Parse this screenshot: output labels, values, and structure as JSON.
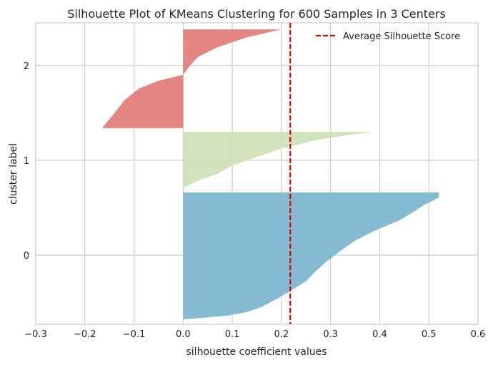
{
  "chart_data": {
    "type": "silhouette",
    "title": "Silhouette Plot of KMeans Clustering for 600 Samples in 3 Centers",
    "xlabel": "silhouette coefficient values",
    "ylabel": "cluster label",
    "xlim": [
      -0.3,
      0.6
    ],
    "ylim": [
      -0.73,
      2.45
    ],
    "xticks": [
      "−0.3",
      "−0.2",
      "−0.1",
      "0.0",
      "0.1",
      "0.2",
      "0.3",
      "0.4",
      "0.5",
      "0.6"
    ],
    "xtick_values": [
      -0.3,
      -0.2,
      -0.1,
      0.0,
      0.1,
      0.2,
      0.3,
      0.4,
      0.5,
      0.6
    ],
    "ytick_labels": [
      "0",
      "1",
      "2"
    ],
    "ytick_values": [
      0,
      1,
      2
    ],
    "grid": true,
    "legend_position": "top-right",
    "average_score": 0.218,
    "average_label": "Average Silhouette Score",
    "average_color": "#e00000",
    "clusters": [
      {
        "label": "0",
        "color": "#7eb6d0",
        "y_range": [
          -0.68,
          0.66
        ],
        "profile": [
          [
            0.0,
            0.521
          ],
          [
            0.04,
            0.52
          ],
          [
            0.06,
            0.51
          ],
          [
            0.1,
            0.49
          ],
          [
            0.15,
            0.47
          ],
          [
            0.22,
            0.44
          ],
          [
            0.3,
            0.39
          ],
          [
            0.38,
            0.35
          ],
          [
            0.46,
            0.32
          ],
          [
            0.55,
            0.29
          ],
          [
            0.62,
            0.27
          ],
          [
            0.7,
            0.25
          ],
          [
            0.77,
            0.22
          ],
          [
            0.84,
            0.19
          ],
          [
            0.9,
            0.16
          ],
          [
            0.94,
            0.13
          ],
          [
            0.97,
            0.09
          ],
          [
            1.0,
            0.0
          ]
        ]
      },
      {
        "label": "1",
        "color": "#cfe0b8",
        "y_range": [
          0.71,
          1.3
        ],
        "profile": [
          [
            0.0,
            0.39
          ],
          [
            0.05,
            0.34
          ],
          [
            0.15,
            0.27
          ],
          [
            0.3,
            0.2
          ],
          [
            0.45,
            0.15
          ],
          [
            0.6,
            0.1
          ],
          [
            0.75,
            0.07
          ],
          [
            0.88,
            0.03
          ],
          [
            1.0,
            0.0
          ]
        ]
      },
      {
        "label": "2",
        "color": "#e37f7a",
        "y_range": [
          1.34,
          2.38
        ],
        "profile": [
          [
            0.0,
            0.2
          ],
          [
            0.08,
            0.13
          ],
          [
            0.18,
            0.07
          ],
          [
            0.28,
            0.03
          ],
          [
            0.36,
            0.015
          ],
          [
            0.46,
            0.0
          ],
          [
            0.52,
            -0.05
          ],
          [
            0.6,
            -0.09
          ],
          [
            0.72,
            -0.12
          ],
          [
            0.85,
            -0.14
          ],
          [
            1.0,
            -0.165
          ]
        ]
      }
    ]
  }
}
